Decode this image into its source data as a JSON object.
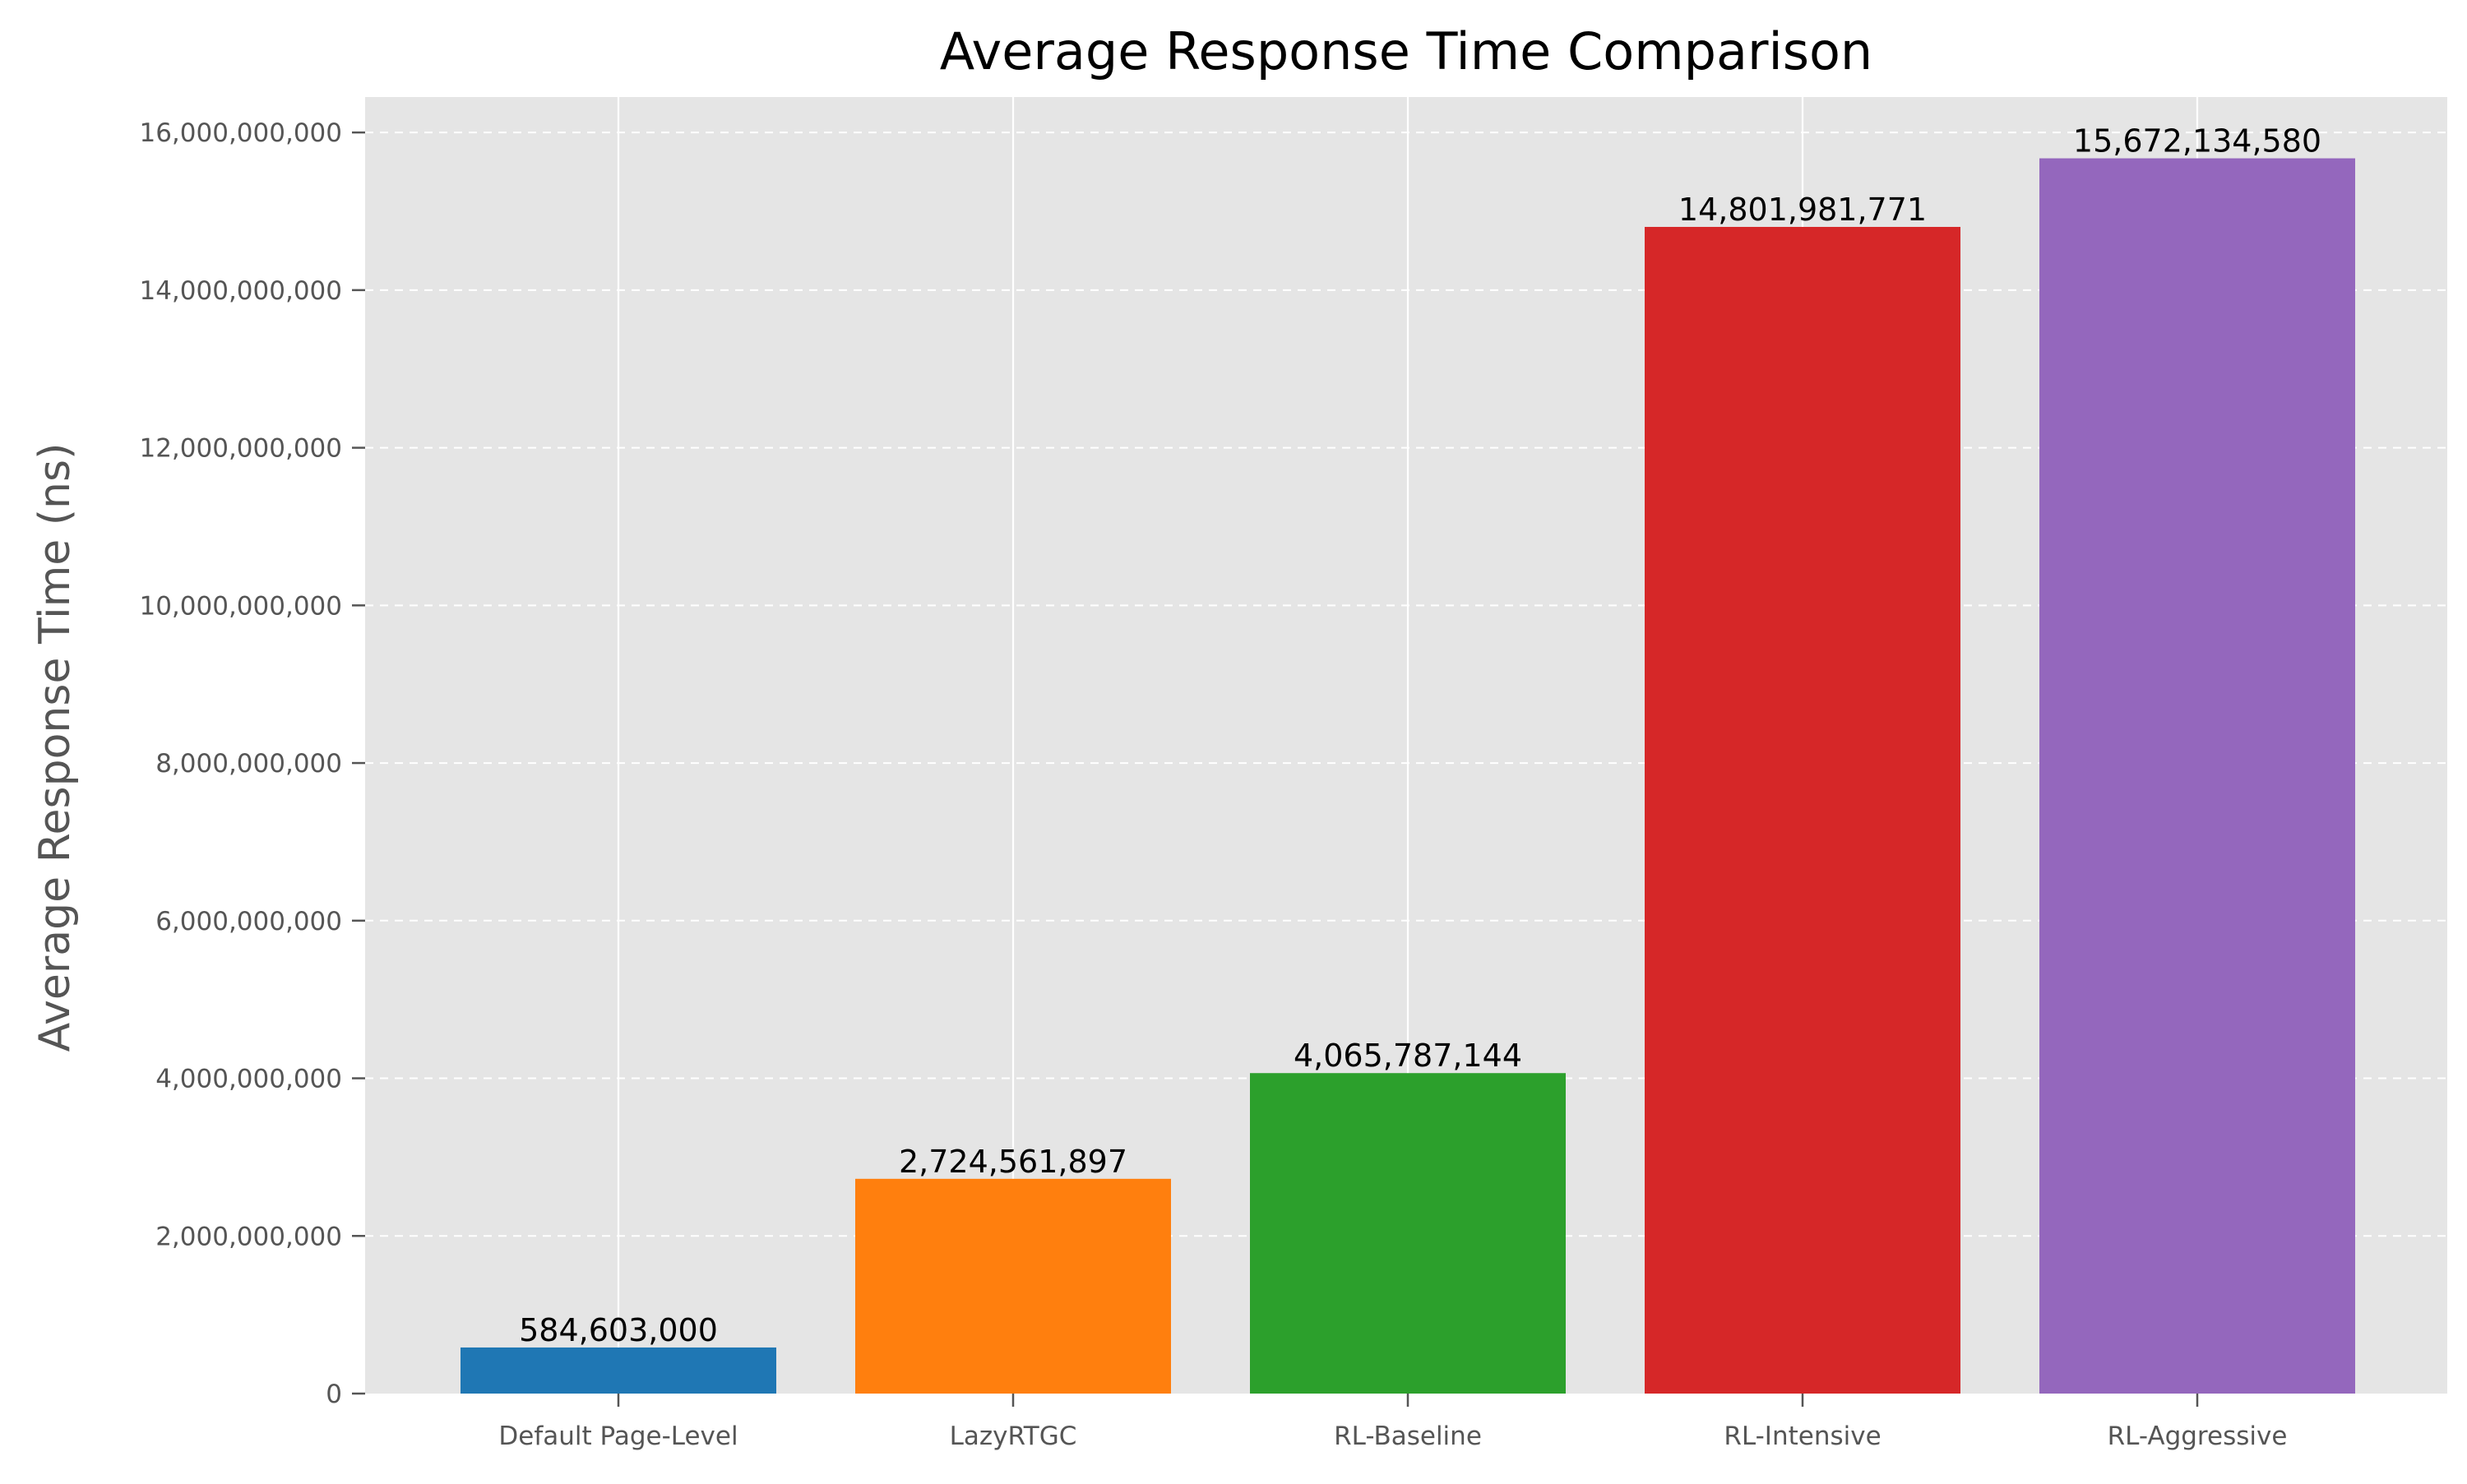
{
  "chart_data": {
    "type": "bar",
    "title": "Average Response Time Comparison",
    "xlabel": "",
    "ylabel": "Average Response Time (ns)",
    "categories": [
      "Default Page-Level",
      "LazyRTGC",
      "RL-Baseline",
      "RL-Intensive",
      "RL-Aggressive"
    ],
    "values": [
      584603000,
      2724561897,
      4065787144,
      14801981771,
      15672134580
    ],
    "value_labels": [
      "584,603,000",
      "2,724,561,897",
      "4,065,787,144",
      "14,801,981,771",
      "15,672,134,580"
    ],
    "bar_colors": [
      "#1f77b4",
      "#ff7f0e",
      "#2ca02c",
      "#d62728",
      "#9467bd"
    ],
    "ylim": [
      0,
      16450000000
    ],
    "yticks": [
      0,
      2000000000,
      4000000000,
      6000000000,
      8000000000,
      10000000000,
      12000000000,
      14000000000,
      16000000000
    ],
    "ytick_labels": [
      "0",
      "2,000,000,000",
      "4,000,000,000",
      "6,000,000,000",
      "8,000,000,000",
      "10,000,000,000",
      "12,000,000,000",
      "14,000,000,000",
      "16,000,000,000"
    ],
    "grid": true,
    "grid_style": "dashed horizontal, solid vertical",
    "legend": "none",
    "background_color": "#e5e5e5"
  }
}
